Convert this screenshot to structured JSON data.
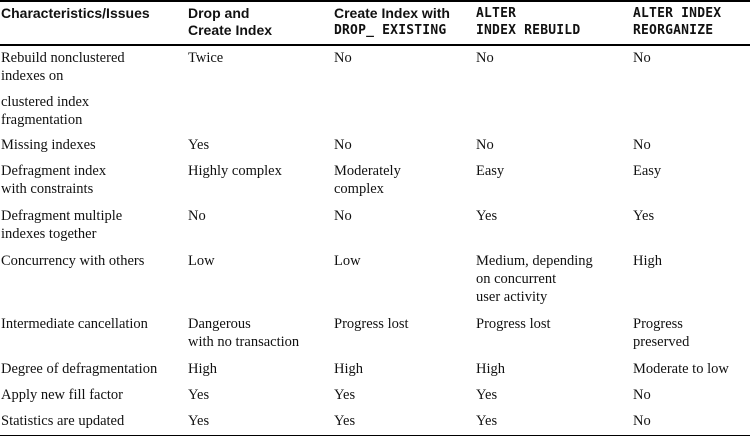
{
  "table": {
    "headers": [
      {
        "lines": [
          "Characteristics/Issues"
        ],
        "mono": [
          false
        ]
      },
      {
        "lines": [
          "Drop and",
          "Create Index"
        ],
        "mono": [
          false,
          false
        ]
      },
      {
        "lines": [
          "Create Index with",
          "DROP_ EXISTING"
        ],
        "mono": [
          false,
          true
        ]
      },
      {
        "lines": [
          "ALTER",
          "INDEX REBUILD"
        ],
        "mono": [
          true,
          true
        ]
      },
      {
        "lines": [
          "ALTER INDEX",
          "REORGANIZE"
        ],
        "mono": [
          true,
          true
        ]
      }
    ],
    "rows": [
      {
        "cells": [
          [
            "Rebuild nonclustered",
            "indexes on",
            "",
            "clustered index",
            "fragmentation"
          ],
          [
            "Twice"
          ],
          [
            "No"
          ],
          [
            "No"
          ],
          [
            "No"
          ]
        ],
        "row_height": 88
      },
      {
        "cells": [
          [
            "Missing indexes"
          ],
          [
            "Yes"
          ],
          [
            "No"
          ],
          [
            "No"
          ],
          [
            "No"
          ]
        ],
        "row_height": 26
      },
      {
        "cells": [
          [
            "Defragment index",
            "with constraints"
          ],
          [
            "Highly complex"
          ],
          [
            "Moderately",
            "complex"
          ],
          [
            "Easy"
          ],
          [
            "Easy"
          ]
        ],
        "row_height": 45
      },
      {
        "cells": [
          [
            "Defragment multiple",
            "indexes together"
          ],
          [
            "No"
          ],
          [
            "No"
          ],
          [
            "Yes"
          ],
          [
            "Yes"
          ]
        ],
        "row_height": 45
      },
      {
        "cells": [
          [
            "Concurrency with others"
          ],
          [
            "Low"
          ],
          [
            "Low"
          ],
          [
            "Medium, depending",
            "on concurrent",
            "user activity"
          ],
          [
            "High"
          ]
        ],
        "row_height": 63
      },
      {
        "cells": [
          [
            "Intermediate cancellation"
          ],
          [
            "Dangerous",
            "with no transaction"
          ],
          [
            "Progress lost"
          ],
          [
            "Progress lost"
          ],
          [
            "Progress",
            "preserved"
          ]
        ],
        "row_height": 45
      },
      {
        "cells": [
          [
            "Degree of defragmentation"
          ],
          [
            "High"
          ],
          [
            "High"
          ],
          [
            "High"
          ],
          [
            "Moderate to low"
          ]
        ],
        "row_height": 26
      },
      {
        "cells": [
          [
            "Apply new fill factor"
          ],
          [
            "Yes"
          ],
          [
            "Yes"
          ],
          [
            "Yes"
          ],
          [
            "No"
          ]
        ],
        "row_height": 26
      },
      {
        "cells": [
          [
            "Statistics are updated"
          ],
          [
            "Yes"
          ],
          [
            "Yes"
          ],
          [
            "Yes"
          ],
          [
            "No"
          ]
        ],
        "row_height": 26
      }
    ]
  }
}
